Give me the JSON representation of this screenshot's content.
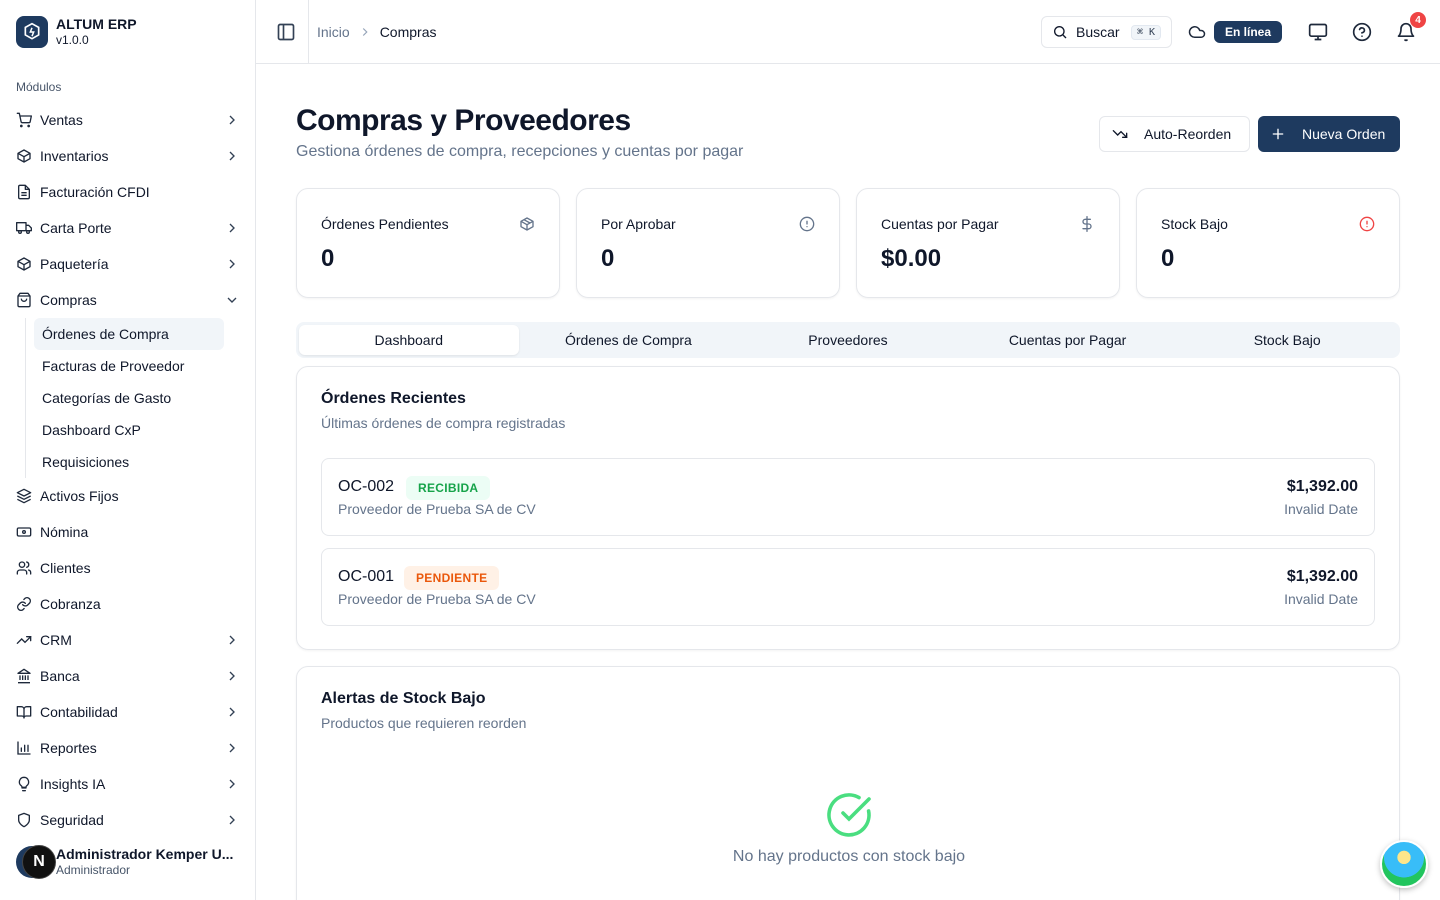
{
  "app": {
    "name": "ALTUM ERP",
    "version": "v1.0.0"
  },
  "sidebar": {
    "section_label": "Módulos",
    "items": [
      {
        "label": "Ventas",
        "icon": "cart-icon",
        "chevron": true
      },
      {
        "label": "Inventarios",
        "icon": "package-icon",
        "chevron": true
      },
      {
        "label": "Facturación CFDI",
        "icon": "file-icon",
        "chevron": false
      },
      {
        "label": "Carta Porte",
        "icon": "truck-icon",
        "chevron": true
      },
      {
        "label": "Paquetería",
        "icon": "package-icon",
        "chevron": true
      },
      {
        "label": "Compras",
        "icon": "shopping-bag-icon",
        "expanded": true
      }
    ],
    "compras_sub": [
      "Órdenes de Compra",
      "Facturas de Proveedor",
      "Categorías de Gasto",
      "Dashboard CxP",
      "Requisiciones"
    ],
    "items_after": [
      {
        "label": "Activos Fijos",
        "icon": "layers-icon",
        "chevron": false
      },
      {
        "label": "Nómina",
        "icon": "banknote-icon",
        "chevron": false
      },
      {
        "label": "Clientes",
        "icon": "users-icon",
        "chevron": false
      },
      {
        "label": "Cobranza",
        "icon": "link-icon",
        "chevron": false
      },
      {
        "label": "CRM",
        "icon": "trending-up-icon",
        "chevron": true
      },
      {
        "label": "Banca",
        "icon": "bank-icon",
        "chevron": true
      },
      {
        "label": "Contabilidad",
        "icon": "book-icon",
        "chevron": true
      },
      {
        "label": "Reportes",
        "icon": "bar-chart-icon",
        "chevron": true
      },
      {
        "label": "Insights IA",
        "icon": "lightbulb-icon",
        "chevron": true
      },
      {
        "label": "Seguridad",
        "icon": "shield-icon",
        "chevron": true
      }
    ],
    "user": {
      "name": "Administrador Kemper U...",
      "role": "Administrador",
      "avatar_letter": "N"
    }
  },
  "header": {
    "breadcrumb": [
      "Inicio",
      "Compras"
    ],
    "search_label": "Buscar",
    "search_shortcut": "⌘ K",
    "status": "En línea",
    "notifications": "4"
  },
  "page": {
    "title": "Compras y Proveedores",
    "subtitle": "Gestiona órdenes de compra, recepciones y cuentas por pagar",
    "auto_reorder": "Auto-Reorden",
    "new_order": "Nueva Orden"
  },
  "kpis": [
    {
      "label": "Órdenes Pendientes",
      "value": "0",
      "icon": "package-icon",
      "icon_color": "#64748b"
    },
    {
      "label": "Por Aprobar",
      "value": "0",
      "icon": "alert-circle-icon",
      "icon_color": "#64748b"
    },
    {
      "label": "Cuentas por Pagar",
      "value": "$0.00",
      "icon": "dollar-icon",
      "icon_color": "#64748b"
    },
    {
      "label": "Stock Bajo",
      "value": "0",
      "icon": "alert-circle-icon",
      "icon_color": "#ef4444"
    }
  ],
  "tabs": [
    "Dashboard",
    "Órdenes de Compra",
    "Proveedores",
    "Cuentas por Pagar",
    "Stock Bajo"
  ],
  "recent": {
    "title": "Órdenes Recientes",
    "subtitle": "Últimas órdenes de compra registradas",
    "orders": [
      {
        "id": "OC-002",
        "status": "RECIBIDA",
        "supplier": "Proveedor de Prueba SA de CV",
        "amount": "$1,392.00",
        "date": "Invalid Date"
      },
      {
        "id": "OC-001",
        "status": "PENDIENTE",
        "supplier": "Proveedor de Prueba SA de CV",
        "amount": "$1,392.00",
        "date": "Invalid Date"
      }
    ]
  },
  "stock_alerts": {
    "title": "Alertas de Stock Bajo",
    "subtitle": "Productos que requieren reorden",
    "empty": "No hay productos con stock bajo"
  },
  "colors": {
    "primary": "#1e3a5f",
    "success": "#16a34a",
    "warning": "#ea580c",
    "danger": "#ef4444"
  }
}
